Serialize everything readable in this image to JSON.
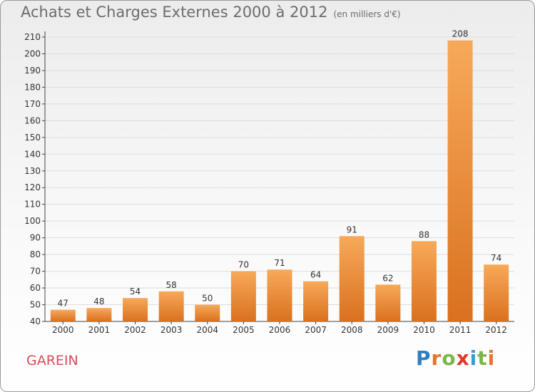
{
  "title": "Achats et Charges Externes 2000 à 2012",
  "title_unit": "(en milliers d'€)",
  "commune": "GAREIN",
  "brand": {
    "text": "Proxiti",
    "letter_colors": [
      "#2f7fc0",
      "#e8732c",
      "#7ab648",
      "#e0382c",
      "#3a9bd8",
      "#7ab648",
      "#e8732c"
    ]
  },
  "colors": {
    "bar_light": "#f7a95a",
    "bar_dark": "#d9711e",
    "grid": "#dddddd",
    "axis": "#444444",
    "text": "#333333"
  },
  "chart_data": {
    "type": "bar",
    "title": "Achats et Charges Externes 2000 à 2012",
    "categories": [
      "2000",
      "2001",
      "2002",
      "2003",
      "2004",
      "2005",
      "2006",
      "2007",
      "2008",
      "2009",
      "2010",
      "2011",
      "2012"
    ],
    "values": [
      47,
      48,
      54,
      58,
      50,
      70,
      71,
      64,
      91,
      62,
      88,
      208,
      74
    ],
    "ylim": [
      40,
      210
    ],
    "yticks": [
      40,
      50,
      60,
      70,
      80,
      90,
      100,
      110,
      120,
      130,
      140,
      150,
      160,
      170,
      180,
      190,
      200,
      210
    ],
    "grid": true,
    "data_labels": true
  }
}
